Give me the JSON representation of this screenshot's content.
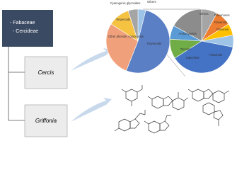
{
  "tree": {
    "root": [
      "- Fabaceae",
      "- Cercideae"
    ],
    "leaves": [
      "Cercis",
      "Griffonia"
    ]
  },
  "pies": [
    {
      "labels": [
        "Others",
        "Flavonoids",
        "Other phenolic compounds",
        "Terpenoids",
        "Cyanogenic glycosides"
      ],
      "values": [
        4,
        52,
        28,
        11,
        5
      ],
      "colors": [
        "#9dc3e6",
        "#5b7fc4",
        "#f0a07a",
        "#f5c242",
        "#a5a5a5"
      ]
    },
    {
      "labels": [
        "Others",
        "Flavanones",
        "Flavanols",
        "Flavones",
        "Flavonols",
        "Catechins",
        "Tannins",
        "Anthocyanins"
      ],
      "values": [
        8,
        8,
        6,
        6,
        38,
        10,
        7,
        17
      ],
      "colors": [
        "#a5a5a5",
        "#ed7d31",
        "#ffc000",
        "#9dc3e6",
        "#4472c4",
        "#70ad47",
        "#5b9bd5",
        "#8c8c8c"
      ]
    }
  ]
}
